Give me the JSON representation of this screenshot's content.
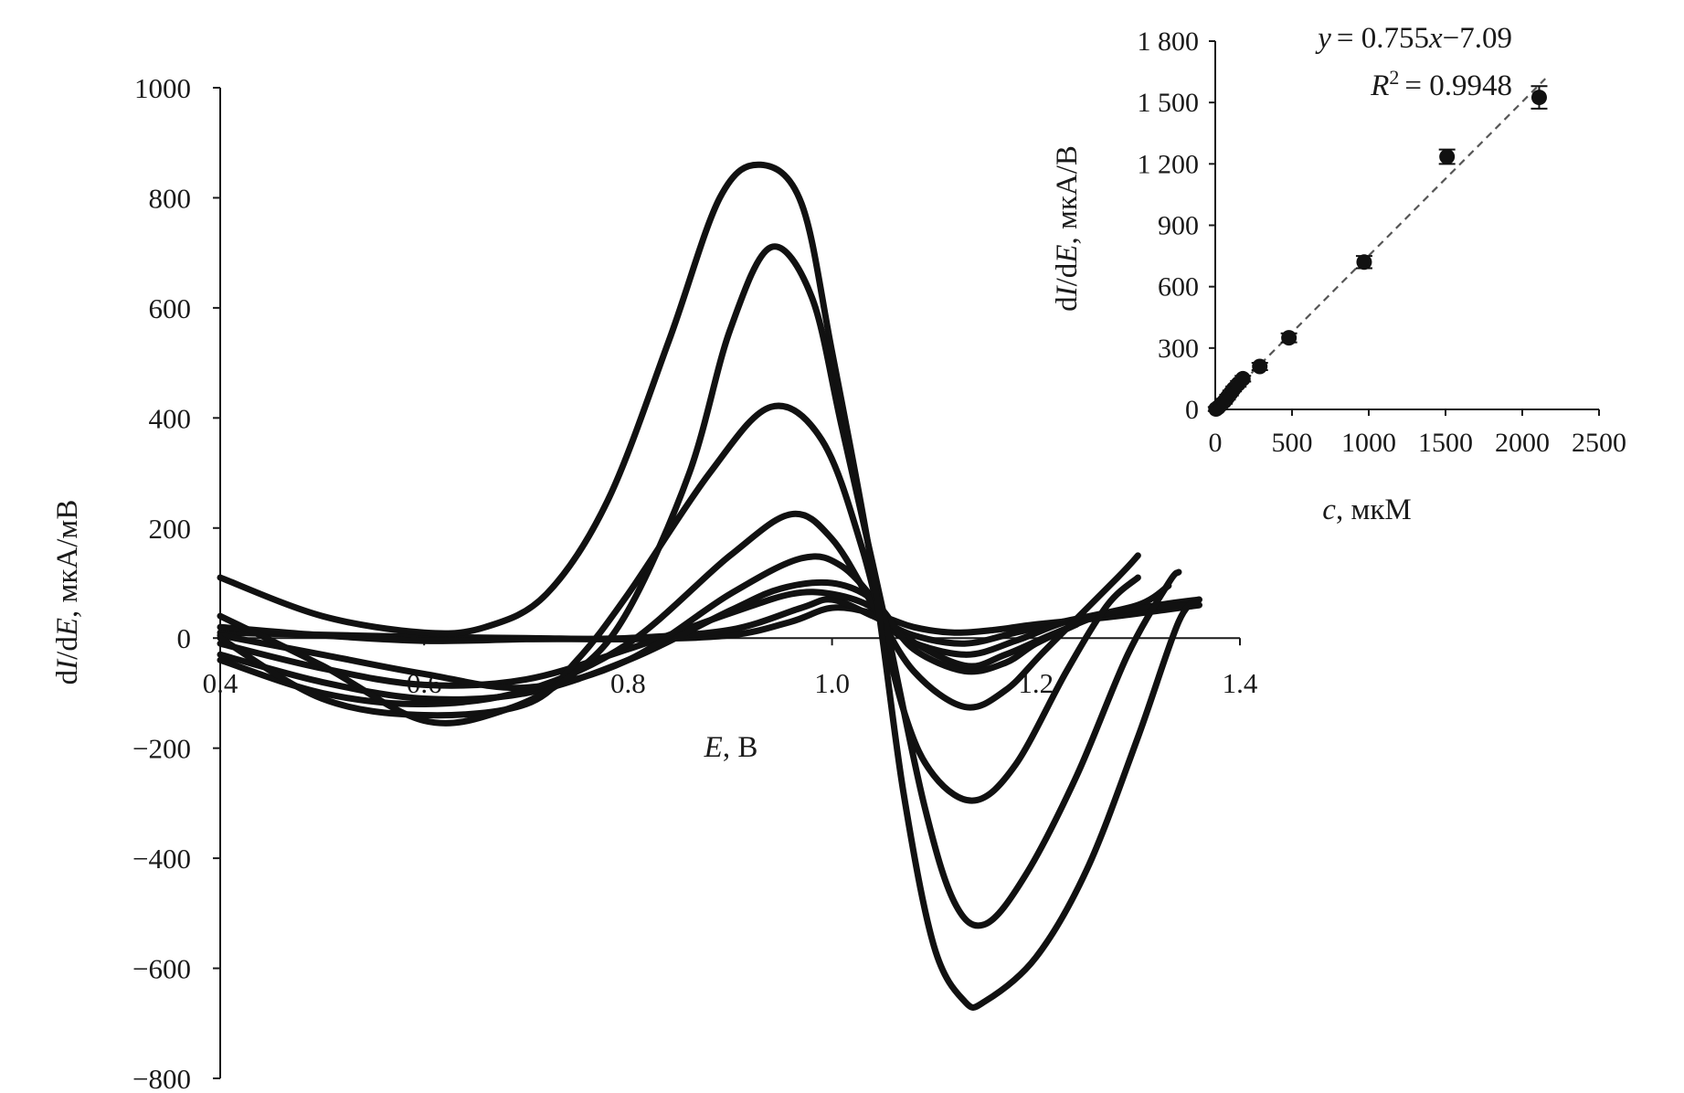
{
  "chart_data": [
    {
      "type": "line",
      "xlabel": "E, В",
      "ylabel": "dI/dE, мкА/мВ",
      "xlim": [
        0.4,
        1.4
      ],
      "ylim": [
        -800,
        1000
      ],
      "x_ticks": [
        0.4,
        0.6,
        0.8,
        1.0,
        1.2,
        1.4
      ],
      "x_tick_labels": [
        "0.4",
        "0.6",
        "0.8",
        "1.0",
        "1.2",
        "1.4"
      ],
      "y_ticks": [
        -800,
        -600,
        -400,
        -200,
        0,
        200,
        400,
        600,
        800,
        1000
      ],
      "y_tick_labels": [
        "−800",
        "−600",
        "−400",
        "−200",
        "0",
        "200",
        "400",
        "600",
        "800",
        "1000"
      ],
      "grid": false,
      "series": [
        {
          "points": [
            [
              0.4,
              10
            ],
            [
              0.5,
              6
            ],
            [
              0.6,
              2
            ],
            [
              0.7,
              0
            ],
            [
              0.8,
              -2
            ],
            [
              0.9,
              5
            ],
            [
              0.96,
              30
            ],
            [
              1.0,
              55
            ],
            [
              1.04,
              45
            ],
            [
              1.08,
              20
            ],
            [
              1.12,
              10
            ],
            [
              1.16,
              15
            ],
            [
              1.2,
              25
            ],
            [
              1.28,
              40
            ],
            [
              1.36,
              60
            ]
          ]
        },
        {
          "points": [
            [
              0.4,
              20
            ],
            [
              0.5,
              5
            ],
            [
              0.6,
              -5
            ],
            [
              0.7,
              -2
            ],
            [
              0.8,
              0
            ],
            [
              0.9,
              15
            ],
            [
              0.97,
              55
            ],
            [
              1.0,
              70
            ],
            [
              1.04,
              40
            ],
            [
              1.08,
              5
            ],
            [
              1.13,
              -10
            ],
            [
              1.18,
              10
            ],
            [
              1.24,
              35
            ],
            [
              1.32,
              60
            ],
            [
              1.36,
              70
            ]
          ]
        },
        {
          "points": [
            [
              0.4,
              -10
            ],
            [
              0.5,
              -55
            ],
            [
              0.6,
              -85
            ],
            [
              0.7,
              -75
            ],
            [
              0.8,
              -20
            ],
            [
              0.9,
              45
            ],
            [
              0.96,
              80
            ],
            [
              1.0,
              80
            ],
            [
              1.04,
              55
            ],
            [
              1.07,
              0
            ],
            [
              1.13,
              -30
            ],
            [
              1.18,
              -5
            ],
            [
              1.23,
              30
            ],
            [
              1.3,
              60
            ],
            [
              1.33,
              95
            ]
          ]
        },
        {
          "points": [
            [
              0.4,
              -30
            ],
            [
              0.5,
              -80
            ],
            [
              0.6,
              -110
            ],
            [
              0.7,
              -100
            ],
            [
              0.8,
              -40
            ],
            [
              0.9,
              50
            ],
            [
              0.95,
              90
            ],
            [
              1.0,
              100
            ],
            [
              1.04,
              70
            ],
            [
              1.07,
              5
            ],
            [
              1.13,
              -50
            ],
            [
              1.17,
              -30
            ],
            [
              1.22,
              10
            ],
            [
              1.28,
              50
            ],
            [
              1.36,
              60
            ]
          ]
        },
        {
          "points": [
            [
              0.4,
              5
            ],
            [
              0.5,
              -30
            ],
            [
              0.6,
              -65
            ],
            [
              0.7,
              -90
            ],
            [
              0.8,
              -40
            ],
            [
              0.9,
              80
            ],
            [
              0.97,
              145
            ],
            [
              1.01,
              130
            ],
            [
              1.05,
              50
            ],
            [
              1.08,
              -20
            ],
            [
              1.13,
              -60
            ],
            [
              1.17,
              -45
            ],
            [
              1.2,
              -10
            ],
            [
              1.24,
              25
            ]
          ]
        },
        {
          "points": [
            [
              0.4,
              -40
            ],
            [
              0.5,
              -100
            ],
            [
              0.6,
              -120
            ],
            [
              0.7,
              -95
            ],
            [
              0.8,
              -10
            ],
            [
              0.9,
              150
            ],
            [
              0.96,
              225
            ],
            [
              1.0,
              180
            ],
            [
              1.04,
              60
            ],
            [
              1.08,
              -60
            ],
            [
              1.13,
              -125
            ],
            [
              1.17,
              -95
            ],
            [
              1.21,
              -20
            ],
            [
              1.28,
              110
            ],
            [
              1.3,
              150
            ]
          ]
        },
        {
          "points": [
            [
              0.4,
              0
            ],
            [
              0.5,
              -110
            ],
            [
              0.6,
              -140
            ],
            [
              0.7,
              -120
            ],
            [
              0.75,
              -40
            ],
            [
              0.8,
              80
            ],
            [
              0.88,
              300
            ],
            [
              0.94,
              420
            ],
            [
              0.99,
              360
            ],
            [
              1.03,
              160
            ],
            [
              1.07,
              -130
            ],
            [
              1.1,
              -250
            ],
            [
              1.14,
              -295
            ],
            [
              1.18,
              -230
            ],
            [
              1.23,
              -60
            ],
            [
              1.27,
              60
            ],
            [
              1.3,
              110
            ]
          ]
        },
        {
          "points": [
            [
              0.4,
              40
            ],
            [
              0.5,
              -50
            ],
            [
              0.6,
              -150
            ],
            [
              0.68,
              -130
            ],
            [
              0.75,
              -60
            ],
            [
              0.8,
              50
            ],
            [
              0.86,
              300
            ],
            [
              0.9,
              560
            ],
            [
              0.94,
              710
            ],
            [
              0.98,
              620
            ],
            [
              1.01,
              380
            ],
            [
              1.05,
              50
            ],
            [
              1.09,
              -300
            ],
            [
              1.12,
              -480
            ],
            [
              1.15,
              -520
            ],
            [
              1.19,
              -430
            ],
            [
              1.24,
              -250
            ],
            [
              1.29,
              -30
            ],
            [
              1.33,
              100
            ],
            [
              1.34,
              120
            ]
          ]
        },
        {
          "points": [
            [
              0.4,
              110
            ],
            [
              0.5,
              40
            ],
            [
              0.6,
              10
            ],
            [
              0.66,
              20
            ],
            [
              0.72,
              80
            ],
            [
              0.78,
              250
            ],
            [
              0.84,
              540
            ],
            [
              0.89,
              800
            ],
            [
              0.93,
              860
            ],
            [
              0.97,
              790
            ],
            [
              1.0,
              520
            ],
            [
              1.04,
              120
            ],
            [
              1.07,
              -280
            ],
            [
              1.1,
              -560
            ],
            [
              1.13,
              -660
            ],
            [
              1.15,
              -660
            ],
            [
              1.2,
              -580
            ],
            [
              1.25,
              -420
            ],
            [
              1.3,
              -180
            ],
            [
              1.34,
              30
            ],
            [
              1.36,
              70
            ]
          ]
        }
      ]
    },
    {
      "type": "scatter",
      "xlabel": "c, мкМ",
      "ylabel": "dI/dE, мкА/В",
      "xlim": [
        0,
        2500
      ],
      "ylim": [
        0,
        1800
      ],
      "x_ticks": [
        0,
        500,
        1000,
        1500,
        2000,
        2500
      ],
      "x_tick_labels": [
        "0",
        "500",
        "1000",
        "1500",
        "2000",
        "2500"
      ],
      "y_ticks": [
        0,
        300,
        600,
        900,
        1200,
        1500,
        1800
      ],
      "y_tick_labels": [
        "0",
        "300",
        "600",
        "900",
        "1 200",
        "1 500",
        "1 800"
      ],
      "equation": {
        "prefix": "y",
        "rhs": "= 0.755",
        "x": "x",
        "tail": "−7.09"
      },
      "r_squared": {
        "label": "R",
        "exp": "2",
        "rhs": "= 0.9948"
      },
      "fit": {
        "slope": 0.755,
        "intercept": -7.09
      },
      "points": [
        {
          "x": 5,
          "y": 2,
          "err": 10
        },
        {
          "x": 20,
          "y": 10,
          "err": 10
        },
        {
          "x": 40,
          "y": 25,
          "err": 10
        },
        {
          "x": 60,
          "y": 40,
          "err": 12
        },
        {
          "x": 80,
          "y": 60,
          "err": 12
        },
        {
          "x": 100,
          "y": 80,
          "err": 12
        },
        {
          "x": 120,
          "y": 100,
          "err": 12
        },
        {
          "x": 150,
          "y": 125,
          "err": 14
        },
        {
          "x": 180,
          "y": 150,
          "err": 14
        },
        {
          "x": 290,
          "y": 210,
          "err": 18
        },
        {
          "x": 480,
          "y": 350,
          "err": 22
        },
        {
          "x": 970,
          "y": 720,
          "err": 30
        },
        {
          "x": 1510,
          "y": 1235,
          "err": 35
        },
        {
          "x": 2110,
          "y": 1525,
          "err": 55
        }
      ]
    }
  ]
}
